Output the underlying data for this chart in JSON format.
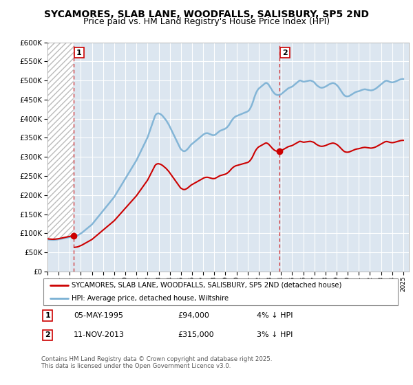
{
  "title": "SYCAMORES, SLAB LANE, WOODFALLS, SALISBURY, SP5 2ND",
  "subtitle": "Price paid vs. HM Land Registry's House Price Index (HPI)",
  "sale1_date": 1995.35,
  "sale1_price": 94000,
  "sale1_label": "1",
  "sale2_date": 2013.87,
  "sale2_price": 315000,
  "sale2_label": "2",
  "legend_entry1": "SYCAMORES, SLAB LANE, WOODFALLS, SALISBURY, SP5 2ND (detached house)",
  "legend_entry2": "HPI: Average price, detached house, Wiltshire",
  "footnote": "Contains HM Land Registry data © Crown copyright and database right 2025.\nThis data is licensed under the Open Government Licence v3.0.",
  "ylim": [
    0,
    600000
  ],
  "xlim_start": 1993.0,
  "xlim_end": 2025.5,
  "red_line_color": "#cc0000",
  "blue_line_color": "#7ab0d4",
  "plot_bg_color": "#dce6f0",
  "grid_color": "#ffffff",
  "vline_color": "#cc0000",
  "title_fontsize": 10,
  "subtitle_fontsize": 9,
  "hpi_data_x": [
    1993.0,
    1993.083,
    1993.167,
    1993.25,
    1993.333,
    1993.417,
    1993.5,
    1993.583,
    1993.667,
    1993.75,
    1993.833,
    1993.917,
    1994.0,
    1994.083,
    1994.167,
    1994.25,
    1994.333,
    1994.417,
    1994.5,
    1994.583,
    1994.667,
    1994.75,
    1994.833,
    1994.917,
    1995.0,
    1995.083,
    1995.167,
    1995.25,
    1995.333,
    1995.417,
    1995.5,
    1995.583,
    1995.667,
    1995.75,
    1995.833,
    1995.917,
    1996.0,
    1996.083,
    1996.167,
    1996.25,
    1996.333,
    1996.417,
    1996.5,
    1996.583,
    1996.667,
    1996.75,
    1996.833,
    1996.917,
    1997.0,
    1997.083,
    1997.167,
    1997.25,
    1997.333,
    1997.417,
    1997.5,
    1997.583,
    1997.667,
    1997.75,
    1997.833,
    1997.917,
    1998.0,
    1998.083,
    1998.167,
    1998.25,
    1998.333,
    1998.417,
    1998.5,
    1998.583,
    1998.667,
    1998.75,
    1998.833,
    1998.917,
    1999.0,
    1999.083,
    1999.167,
    1999.25,
    1999.333,
    1999.417,
    1999.5,
    1999.583,
    1999.667,
    1999.75,
    1999.833,
    1999.917,
    2000.0,
    2000.083,
    2000.167,
    2000.25,
    2000.333,
    2000.417,
    2000.5,
    2000.583,
    2000.667,
    2000.75,
    2000.833,
    2000.917,
    2001.0,
    2001.083,
    2001.167,
    2001.25,
    2001.333,
    2001.417,
    2001.5,
    2001.583,
    2001.667,
    2001.75,
    2001.833,
    2001.917,
    2002.0,
    2002.083,
    2002.167,
    2002.25,
    2002.333,
    2002.417,
    2002.5,
    2002.583,
    2002.667,
    2002.75,
    2002.833,
    2002.917,
    2003.0,
    2003.083,
    2003.167,
    2003.25,
    2003.333,
    2003.417,
    2003.5,
    2003.583,
    2003.667,
    2003.75,
    2003.833,
    2003.917,
    2004.0,
    2004.083,
    2004.167,
    2004.25,
    2004.333,
    2004.417,
    2004.5,
    2004.583,
    2004.667,
    2004.75,
    2004.833,
    2004.917,
    2005.0,
    2005.083,
    2005.167,
    2005.25,
    2005.333,
    2005.417,
    2005.5,
    2005.583,
    2005.667,
    2005.75,
    2005.833,
    2005.917,
    2006.0,
    2006.083,
    2006.167,
    2006.25,
    2006.333,
    2006.417,
    2006.5,
    2006.583,
    2006.667,
    2006.75,
    2006.833,
    2006.917,
    2007.0,
    2007.083,
    2007.167,
    2007.25,
    2007.333,
    2007.417,
    2007.5,
    2007.583,
    2007.667,
    2007.75,
    2007.833,
    2007.917,
    2008.0,
    2008.083,
    2008.167,
    2008.25,
    2008.333,
    2008.417,
    2008.5,
    2008.583,
    2008.667,
    2008.75,
    2008.833,
    2008.917,
    2009.0,
    2009.083,
    2009.167,
    2009.25,
    2009.333,
    2009.417,
    2009.5,
    2009.583,
    2009.667,
    2009.75,
    2009.833,
    2009.917,
    2010.0,
    2010.083,
    2010.167,
    2010.25,
    2010.333,
    2010.417,
    2010.5,
    2010.583,
    2010.667,
    2010.75,
    2010.833,
    2010.917,
    2011.0,
    2011.083,
    2011.167,
    2011.25,
    2011.333,
    2011.417,
    2011.5,
    2011.583,
    2011.667,
    2011.75,
    2011.833,
    2011.917,
    2012.0,
    2012.083,
    2012.167,
    2012.25,
    2012.333,
    2012.417,
    2012.5,
    2012.583,
    2012.667,
    2012.75,
    2012.833,
    2012.917,
    2013.0,
    2013.083,
    2013.167,
    2013.25,
    2013.333,
    2013.417,
    2013.5,
    2013.583,
    2013.667,
    2013.75,
    2013.833,
    2013.917,
    2014.0,
    2014.083,
    2014.167,
    2014.25,
    2014.333,
    2014.417,
    2014.5,
    2014.583,
    2014.667,
    2014.75,
    2014.833,
    2014.917,
    2015.0,
    2015.083,
    2015.167,
    2015.25,
    2015.333,
    2015.417,
    2015.5,
    2015.583,
    2015.667,
    2015.75,
    2015.833,
    2015.917,
    2016.0,
    2016.083,
    2016.167,
    2016.25,
    2016.333,
    2016.417,
    2016.5,
    2016.583,
    2016.667,
    2016.75,
    2016.833,
    2016.917,
    2017.0,
    2017.083,
    2017.167,
    2017.25,
    2017.333,
    2017.417,
    2017.5,
    2017.583,
    2017.667,
    2017.75,
    2017.833,
    2017.917,
    2018.0,
    2018.083,
    2018.167,
    2018.25,
    2018.333,
    2018.417,
    2018.5,
    2018.583,
    2018.667,
    2018.75,
    2018.833,
    2018.917,
    2019.0,
    2019.083,
    2019.167,
    2019.25,
    2019.333,
    2019.417,
    2019.5,
    2019.583,
    2019.667,
    2019.75,
    2019.833,
    2019.917,
    2020.0,
    2020.083,
    2020.167,
    2020.25,
    2020.333,
    2020.417,
    2020.5,
    2020.583,
    2020.667,
    2020.75,
    2020.833,
    2020.917,
    2021.0,
    2021.083,
    2021.167,
    2021.25,
    2021.333,
    2021.417,
    2021.5,
    2021.583,
    2021.667,
    2021.75,
    2021.833,
    2021.917,
    2022.0,
    2022.083,
    2022.167,
    2022.25,
    2022.333,
    2022.417,
    2022.5,
    2022.583,
    2022.667,
    2022.75,
    2022.833,
    2022.917,
    2023.0,
    2023.083,
    2023.167,
    2023.25,
    2023.333,
    2023.417,
    2023.5,
    2023.583,
    2023.667,
    2023.75,
    2023.833,
    2023.917,
    2024.0,
    2024.083,
    2024.167,
    2024.25,
    2024.333,
    2024.417,
    2024.5,
    2024.583,
    2024.667,
    2024.75,
    2024.833,
    2024.917,
    2025.0
  ],
  "hpi_data_y": [
    84000,
    83500,
    83200,
    83000,
    82800,
    82700,
    82600,
    82700,
    82900,
    83100,
    83400,
    83700,
    84100,
    84500,
    85000,
    85500,
    86000,
    86500,
    87000,
    87500,
    88000,
    88500,
    89000,
    89500,
    90000,
    90500,
    91000,
    91500,
    92000,
    92500,
    93000,
    93500,
    94000,
    95000,
    96500,
    98000,
    99500,
    101000,
    103000,
    105000,
    107000,
    109000,
    111000,
    113000,
    115000,
    117000,
    119000,
    121000,
    123000,
    126000,
    129000,
    132000,
    135000,
    138000,
    141000,
    144000,
    147000,
    150000,
    153000,
    156000,
    159000,
    162000,
    165000,
    168000,
    171000,
    174000,
    177000,
    180000,
    183000,
    186000,
    189000,
    192000,
    195000,
    199000,
    203000,
    207000,
    211000,
    215000,
    219000,
    223000,
    227000,
    231000,
    235000,
    239000,
    243000,
    247000,
    251000,
    255000,
    259000,
    263000,
    267000,
    271000,
    275000,
    279000,
    283000,
    287000,
    291000,
    296000,
    301000,
    306000,
    311000,
    316000,
    321000,
    326000,
    331000,
    336000,
    341000,
    346000,
    351000,
    358000,
    365000,
    372000,
    379000,
    386000,
    393000,
    400000,
    407000,
    411000,
    413000,
    414000,
    414000,
    413000,
    412000,
    410000,
    408000,
    405000,
    402000,
    399000,
    396000,
    392000,
    388000,
    384000,
    379000,
    374000,
    369000,
    364000,
    359000,
    354000,
    349000,
    344000,
    339000,
    334000,
    329000,
    324000,
    320000,
    318000,
    316000,
    315000,
    315000,
    316000,
    318000,
    320000,
    323000,
    326000,
    329000,
    332000,
    334000,
    336000,
    338000,
    340000,
    342000,
    344000,
    346000,
    348000,
    350000,
    352000,
    354000,
    356000,
    358000,
    360000,
    361000,
    362000,
    362000,
    362000,
    361000,
    360000,
    359000,
    358000,
    357000,
    357000,
    357000,
    358000,
    360000,
    362000,
    364000,
    366000,
    368000,
    369000,
    370000,
    371000,
    372000,
    373000,
    374000,
    376000,
    378000,
    381000,
    384000,
    388000,
    392000,
    396000,
    399000,
    402000,
    404000,
    406000,
    407000,
    408000,
    409000,
    410000,
    411000,
    412000,
    413000,
    414000,
    415000,
    416000,
    417000,
    418000,
    419000,
    421000,
    424000,
    428000,
    433000,
    439000,
    446000,
    454000,
    461000,
    467000,
    472000,
    476000,
    479000,
    481000,
    483000,
    485000,
    487000,
    489000,
    491000,
    493000,
    494000,
    493000,
    491000,
    488000,
    484000,
    480000,
    476000,
    472000,
    469000,
    466000,
    464000,
    463000,
    462000,
    462000,
    462000,
    463000,
    464000,
    466000,
    468000,
    470000,
    472000,
    474000,
    476000,
    478000,
    480000,
    481000,
    482000,
    483000,
    484000,
    486000,
    488000,
    490000,
    492000,
    494000,
    496000,
    498000,
    500000,
    500000,
    499000,
    498000,
    497000,
    497000,
    497500,
    498000,
    498500,
    499000,
    499500,
    500000,
    500000,
    499000,
    498000,
    497000,
    495000,
    492000,
    489000,
    487000,
    485000,
    483500,
    482000,
    481500,
    481000,
    481500,
    482000,
    483000,
    484000,
    485500,
    487000,
    488500,
    490000,
    491000,
    492000,
    493000,
    493500,
    493000,
    492000,
    490500,
    488500,
    486000,
    483000,
    479500,
    476000,
    472000,
    468500,
    465000,
    462000,
    460000,
    459000,
    458500,
    458500,
    459000,
    460000,
    461500,
    463000,
    464500,
    466000,
    467500,
    469000,
    470000,
    471000,
    471500,
    472000,
    473000,
    474000,
    475000,
    476000,
    476500,
    477000,
    477000,
    476500,
    476000,
    475500,
    475000,
    474500,
    474000,
    474500,
    475000,
    476000,
    477000,
    478500,
    480000,
    482000,
    484000,
    486000,
    488000,
    490000,
    492000,
    494000,
    496000,
    498000,
    499000,
    499500,
    499000,
    498000,
    497000,
    496000,
    495500,
    495000,
    495500,
    496000,
    497000,
    498000,
    499000,
    500000,
    501000,
    502000,
    503000,
    503500,
    504000,
    504000
  ],
  "xticks": [
    1993,
    1994,
    1995,
    1996,
    1997,
    1998,
    1999,
    2000,
    2001,
    2002,
    2003,
    2004,
    2005,
    2006,
    2007,
    2008,
    2009,
    2010,
    2011,
    2012,
    2013,
    2014,
    2015,
    2016,
    2017,
    2018,
    2019,
    2020,
    2021,
    2022,
    2023,
    2024,
    2025
  ],
  "yticks": [
    0,
    50000,
    100000,
    150000,
    200000,
    250000,
    300000,
    350000,
    400000,
    450000,
    500000,
    550000,
    600000
  ]
}
